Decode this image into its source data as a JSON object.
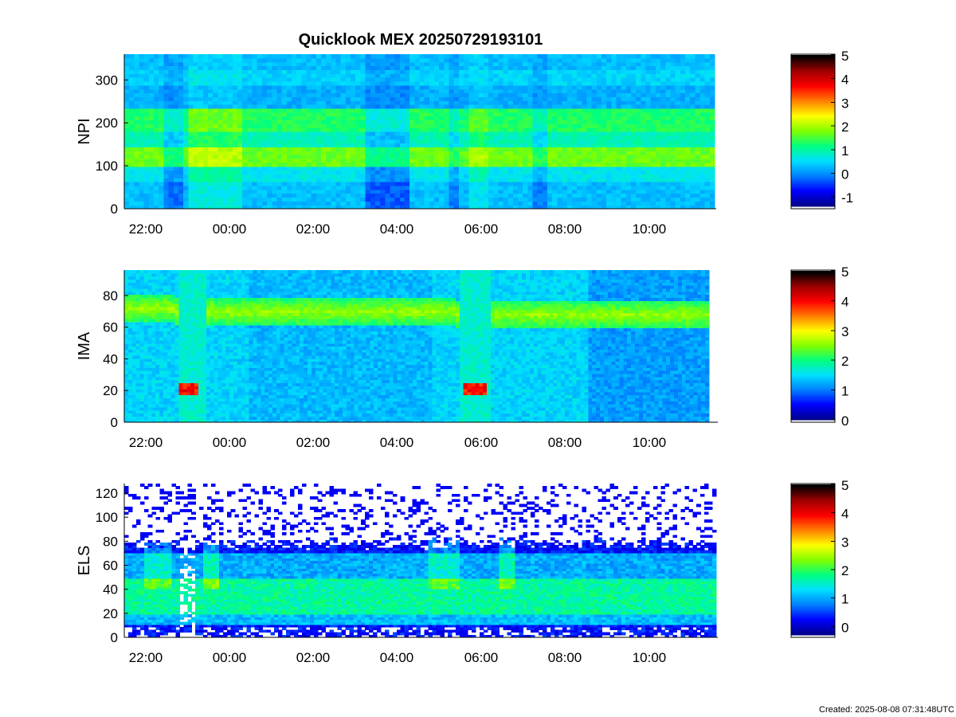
{
  "title": "Quicklook MEX 20250729193101",
  "footer": "Created: 2025-08-08 07:31:48UTC",
  "chart_data": [
    {
      "type": "heatmap",
      "id": "npi",
      "ylabel": "NPI",
      "ylim": [
        0,
        360
      ],
      "yticks": [
        0,
        100,
        200,
        300
      ],
      "xticks": [
        "22:00",
        "00:00",
        "02:00",
        "04:00",
        "06:00",
        "08:00",
        "10:00"
      ],
      "colorbar": {
        "range": [
          -1.4,
          5
        ],
        "ticks": [
          "-1",
          "0",
          "1",
          "2",
          "3",
          "4",
          "5"
        ]
      },
      "colormap": [
        "#00008c",
        "#0000ff",
        "#0080ff",
        "#00e0ff",
        "#00ff80",
        "#80ff00",
        "#ffff00",
        "#ff8000",
        "#ff0000",
        "#a00000",
        "#000000"
      ]
    },
    {
      "type": "heatmap",
      "id": "ima",
      "ylabel": "IMA",
      "ylim": [
        0,
        96
      ],
      "yticks": [
        0,
        20,
        40,
        60,
        80
      ],
      "xticks": [
        "22:00",
        "00:00",
        "02:00",
        "04:00",
        "06:00",
        "08:00",
        "10:00"
      ],
      "colorbar": {
        "range": [
          0,
          5
        ],
        "ticks": [
          "0",
          "1",
          "2",
          "3",
          "4",
          "5"
        ]
      },
      "colormap": [
        "#00008c",
        "#0000ff",
        "#0080ff",
        "#00e0ff",
        "#00ff80",
        "#80ff00",
        "#ffff00",
        "#ff8000",
        "#ff0000",
        "#a00000",
        "#000000"
      ]
    },
    {
      "type": "heatmap",
      "id": "els",
      "ylabel": "ELS",
      "ylim": [
        0,
        128
      ],
      "yticks": [
        0,
        20,
        40,
        60,
        80,
        100,
        120
      ],
      "xticks": [
        "22:00",
        "00:00",
        "02:00",
        "04:00",
        "06:00",
        "08:00",
        "10:00"
      ],
      "colorbar": {
        "range": [
          -0.3,
          5
        ],
        "ticks": [
          "0",
          "1",
          "2",
          "3",
          "4",
          "5"
        ]
      },
      "colormap": [
        "#00008c",
        "#0000ff",
        "#0080ff",
        "#00e0ff",
        "#00ff80",
        "#80ff00",
        "#ffff00",
        "#ff8000",
        "#ff0000",
        "#a00000",
        "#000000"
      ]
    }
  ]
}
